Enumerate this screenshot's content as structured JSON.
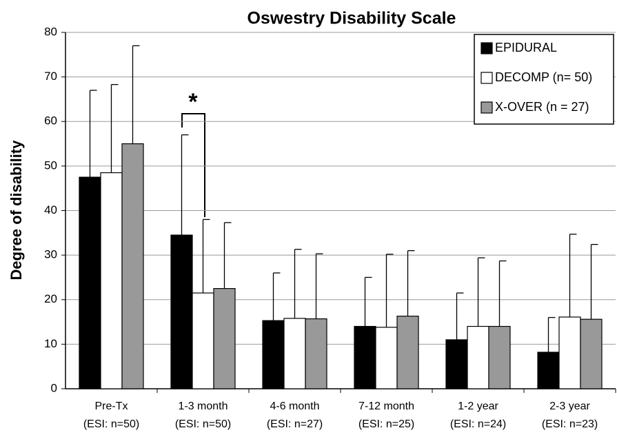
{
  "chart_data": {
    "type": "bar",
    "title": "Oswestry Disability Scale",
    "y_label": "Degree of disability",
    "categories": [
      [
        "Pre-Tx",
        "(ESI: n=50)"
      ],
      [
        "1-3 month",
        "(ESI:  n=50)"
      ],
      [
        "4-6 month",
        "(ESI: n=27)"
      ],
      [
        "7-12 month",
        "(ESI: n=25)"
      ],
      [
        "1-2 year",
        "(ESI: n=24)"
      ],
      [
        "2-3 year",
        "(ESI: n=23)"
      ]
    ],
    "series": [
      {
        "name": "EPIDURAL",
        "color": "#000000",
        "values": [
          47.5,
          34.5,
          15.3,
          14,
          11,
          8.2
        ],
        "errors": [
          19.5,
          22.5,
          10.7,
          11,
          10.5,
          7.8
        ]
      },
      {
        "name": "DECOMP (n= 50)",
        "color": "#ffffff",
        "values": [
          48.5,
          21.5,
          15.8,
          13.8,
          14,
          16.1
        ],
        "errors": [
          19.8,
          16.5,
          15.5,
          16.4,
          15.4,
          18.6
        ]
      },
      {
        "name": "X-OVER (n = 27)",
        "color": "#999999",
        "values": [
          55,
          22.5,
          15.7,
          16.3,
          14,
          15.6
        ],
        "errors": [
          22,
          14.8,
          14.6,
          14.7,
          14.7,
          16.8
        ]
      }
    ],
    "ylim": [
      0,
      80
    ],
    "yticks": [
      0,
      10,
      20,
      30,
      40,
      50,
      60,
      70,
      80
    ],
    "grid": true,
    "legend": "top-right",
    "annotation": "*"
  }
}
